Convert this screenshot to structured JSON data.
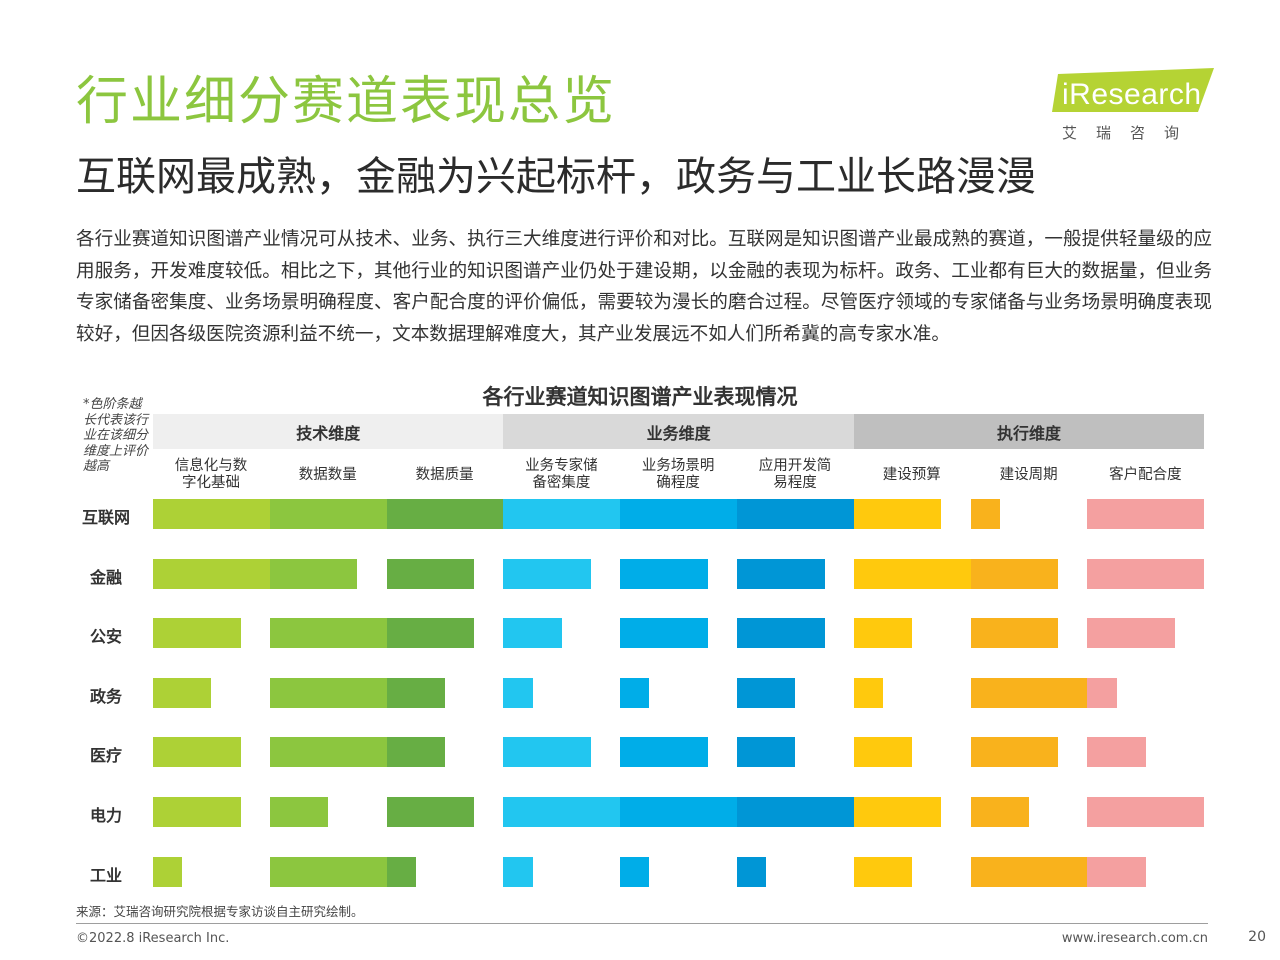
{
  "header": {
    "title": "行业细分赛道表现总览",
    "subtitle": "互联网最成熟，金融为兴起标杆，政务与工业长路漫漫",
    "intro": "各行业赛道知识图谱产业情况可从技术、业务、执行三大维度进行评价和对比。互联网是知识图谱产业最成熟的赛道，一般提供轻量级的应用服务，开发难度较低。相比之下，其他行业的知识图谱产业仍处于建设期，以金融的表现为标杆。政务、工业都有巨大的数据量，但业务专家储备密集度、业务场景明确程度、客户配合度的评价偏低，需要较为漫长的磨合过程。尽管医疗领域的专家储备与业务场景明确度表现较好，但因各级医院资源利益不统一，文本数据理解难度大，其产业发展远不如人们所希冀的高专家水准。"
  },
  "logo": {
    "brand": "iResearch",
    "cn": "艾瑞咨询",
    "color": "#b5d334"
  },
  "chart_data": {
    "type": "bar",
    "title": "各行业赛道知识图谱产业表现情况",
    "note": "*色阶条越长代表该行业在该细分维度上评价越高",
    "dimensions": [
      {
        "name": "技术维度",
        "band_color": "#efefef",
        "metrics": [
          "信息化与数字化基础",
          "数据数量",
          "数据质量"
        ],
        "colors": [
          "#add136",
          "#8cc63f",
          "#67ae44"
        ]
      },
      {
        "name": "业务维度",
        "band_color": "#d9d9d9",
        "metrics": [
          "业务专家储备密集度",
          "业务场景明确程度",
          "应用开发简易程度"
        ],
        "colors": [
          "#22c6f0",
          "#00ade8",
          "#0096d6"
        ]
      },
      {
        "name": "执行维度",
        "band_color": "#bfbfbf",
        "metrics": [
          "建设预算",
          "建设周期",
          "客户配合度"
        ],
        "colors": [
          "#ffc90d",
          "#f9b21c",
          "#f4a0a0"
        ]
      }
    ],
    "max_value": 4,
    "industries": [
      {
        "name": "互联网",
        "values": [
          4,
          4,
          4,
          4,
          4,
          4,
          3,
          1,
          4
        ]
      },
      {
        "name": "金融",
        "values": [
          4,
          3,
          3,
          3,
          3,
          3,
          4,
          3,
          4
        ]
      },
      {
        "name": "公安",
        "values": [
          3,
          4,
          3,
          2,
          3,
          3,
          2,
          3,
          3
        ]
      },
      {
        "name": "政务",
        "values": [
          2,
          4,
          2,
          1,
          1,
          2,
          1,
          4,
          1
        ]
      },
      {
        "name": "医疗",
        "values": [
          3,
          4,
          2,
          3,
          3,
          2,
          2,
          3,
          2
        ]
      },
      {
        "name": "电力",
        "values": [
          3,
          2,
          3,
          4,
          4,
          4,
          3,
          2,
          4
        ]
      },
      {
        "name": "工业",
        "values": [
          1,
          4,
          1,
          1,
          1,
          1,
          2,
          4,
          2
        ]
      }
    ]
  },
  "footer": {
    "source": "来源：艾瑞咨询研究院根据专家访谈自主研究绘制。",
    "copyright": "©2022.8 iResearch Inc.",
    "website": "www.iresearch.com.cn",
    "page": "20"
  }
}
